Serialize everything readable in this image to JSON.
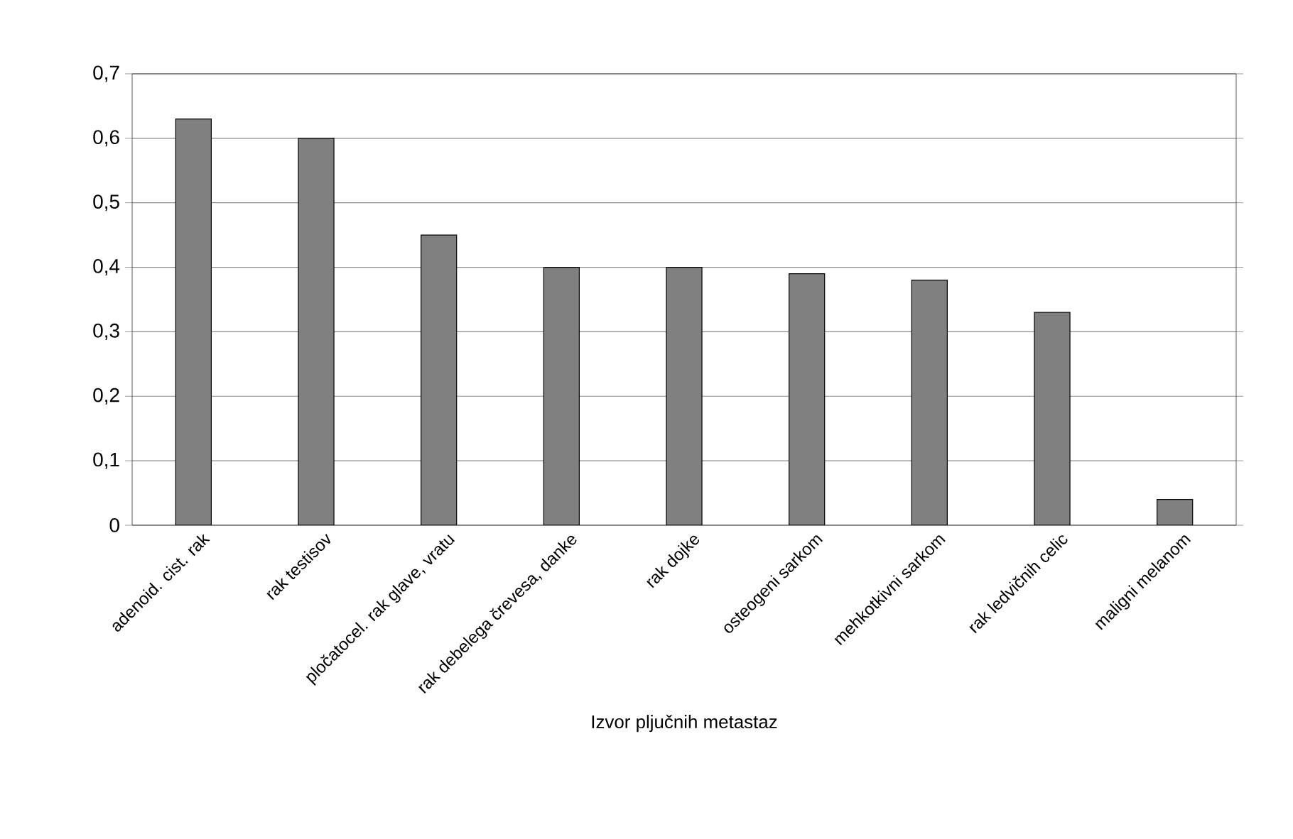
{
  "chart_data": {
    "type": "bar",
    "xlabel": "Izvor pljučnih metastaz",
    "categories": [
      "adenoid. cist. rak",
      "rak testisov",
      "pločatocel. rak glave, vratu",
      "rak debelega črevesa, danke",
      "rak dojke",
      "osteogeni sarkom",
      "mehkotkivni sarkom",
      "rak ledvičnih celic",
      "maligni melanom"
    ],
    "values": [
      0.63,
      0.6,
      0.45,
      0.4,
      0.4,
      0.39,
      0.38,
      0.33,
      0.04
    ],
    "color": "#808080",
    "ylim": [
      0,
      0.7
    ],
    "yticks": [
      {
        "value": 0,
        "label": "0"
      },
      {
        "value": 0.1,
        "label": "0,1"
      },
      {
        "value": 0.2,
        "label": "0,2"
      },
      {
        "value": 0.3,
        "label": "0,3"
      },
      {
        "value": 0.4,
        "label": "0,4"
      },
      {
        "value": 0.5,
        "label": "0,5"
      },
      {
        "value": 0.6,
        "label": "0,6"
      },
      {
        "value": 0.7,
        "label": "0,7"
      }
    ],
    "grid": "y"
  }
}
